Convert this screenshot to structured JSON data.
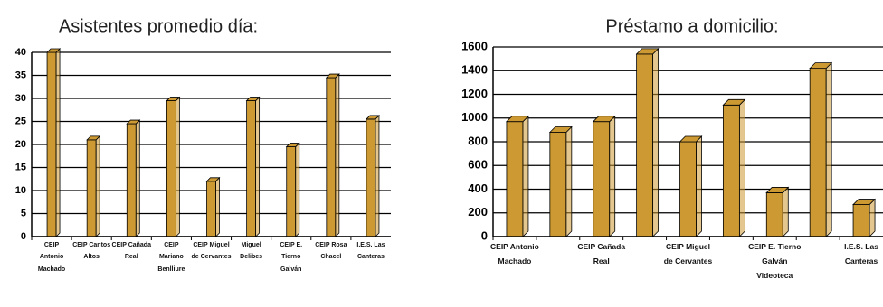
{
  "chart_data": [
    {
      "type": "bar",
      "title": "Asistentes promedio día:",
      "categories": [
        "CEIP Antonio Machado",
        "CEIP Cantos Altos",
        "CEIP Cañada Real",
        "CEIP Mariano Benlliure",
        "CEIP Miguel de Cervantes",
        "Miguel Delibes",
        "CEIP E. Tierno Galván",
        "CEIP Rosa Chacel",
        "I.E.S. Las Canteras"
      ],
      "values": [
        40,
        21,
        24.5,
        29.5,
        12,
        29.5,
        19.5,
        34.5,
        25.5
      ],
      "color": "#cc9933",
      "ylim": [
        0,
        40
      ],
      "yticks": [
        0,
        5,
        10,
        15,
        20,
        25,
        30,
        35,
        40
      ],
      "grid": true
    },
    {
      "type": "bar",
      "title": "Préstamo a domicilio:",
      "categories": [
        "CEIP Antonio Machado",
        null,
        "CEIP Cañada Real",
        null,
        "CEIP Miguel de Cervantes",
        null,
        "CEIP E. Tierno Galván Videoteca",
        null,
        "I.E.S. Las Canteras"
      ],
      "values": [
        970,
        880,
        970,
        1540,
        800,
        1110,
        370,
        1420,
        270
      ],
      "color": "#cc9933",
      "ylim": [
        0,
        1600
      ],
      "yticks": [
        0,
        200,
        400,
        600,
        800,
        1000,
        1200,
        1400,
        1600
      ],
      "grid": true
    }
  ]
}
